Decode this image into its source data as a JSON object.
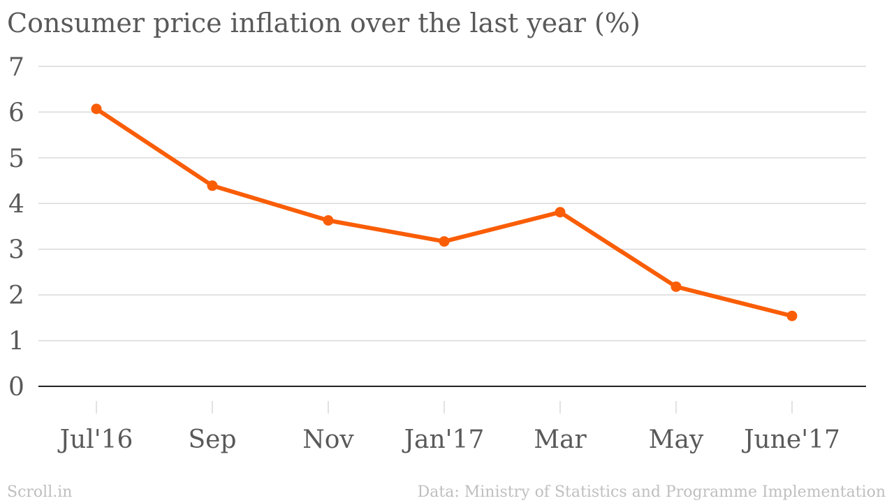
{
  "title": "Consumer price inflation over the last year (%)",
  "footer": {
    "source_brand": "Scroll.in",
    "data_credit": "Data: Ministry of Statistics and Programme Implementation"
  },
  "colors": {
    "line": "#f95d06",
    "grid": "#d9d9d9",
    "axis": "#222222",
    "text": "#595959",
    "footer_text": "#bfbfbf"
  },
  "chart_data": {
    "type": "line",
    "title": "Consumer price inflation over the last year (%)",
    "xlabel": "",
    "ylabel": "",
    "categories": [
      "Jul'16",
      "Sep",
      "Nov",
      "Jan'17",
      "Mar",
      "May",
      "June'17"
    ],
    "values": [
      6.07,
      4.39,
      3.63,
      3.17,
      3.81,
      2.18,
      1.54
    ],
    "ylim": [
      0,
      7
    ],
    "yticks": [
      0,
      1,
      2,
      3,
      4,
      5,
      6,
      7
    ],
    "grid": true,
    "markers": true
  }
}
